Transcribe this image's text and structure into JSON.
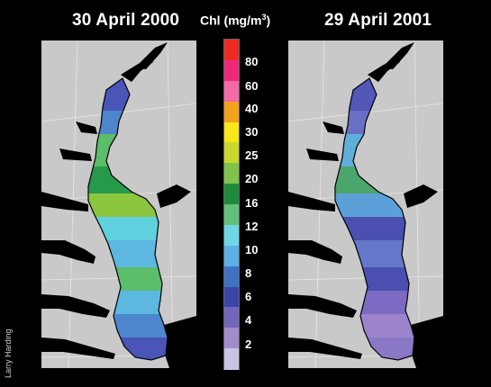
{
  "panels": [
    {
      "title": "30 April 2000",
      "zones": [
        {
          "class": "6",
          "color": "#4a55b8"
        },
        {
          "class": "8",
          "color": "#4d86cc"
        },
        {
          "class": "16",
          "color": "#5cbd6a"
        },
        {
          "class": "20",
          "color": "#27994a"
        },
        {
          "class": "25",
          "color": "#8cc63f"
        },
        {
          "class": "12",
          "color": "#5fd0de"
        },
        {
          "class": "10",
          "color": "#5cb8e0"
        },
        {
          "class": "16",
          "color": "#5cbd6a"
        },
        {
          "class": "10",
          "color": "#5cb8e0"
        },
        {
          "class": "8",
          "color": "#4d86cc"
        },
        {
          "class": "6",
          "color": "#4a55b8"
        }
      ]
    },
    {
      "title": "29 April 2001",
      "zones": [
        {
          "class": "6",
          "color": "#5257b8"
        },
        {
          "class": "8",
          "color": "#6a6fc6"
        },
        {
          "class": "12",
          "color": "#5fb0d8"
        },
        {
          "class": "16",
          "color": "#4aa66a"
        },
        {
          "class": "10",
          "color": "#5ca0d8"
        },
        {
          "class": "6",
          "color": "#4a4fb0"
        },
        {
          "class": "8",
          "color": "#6477c8"
        },
        {
          "class": "6",
          "color": "#4a4fb0"
        },
        {
          "class": "4",
          "color": "#7d6ac2"
        },
        {
          "class": "2",
          "color": "#9b84cc"
        },
        {
          "class": "4",
          "color": "#8a78c6"
        }
      ]
    }
  ],
  "legend": {
    "title_prefix": "Chl (mg/m",
    "title_exp": "3",
    "title_suffix": ")",
    "segments": [
      {
        "color": "#ee2a24"
      },
      {
        "color": "#f0287a"
      },
      {
        "color": "#f26aa8"
      },
      {
        "color": "#f4a21c"
      },
      {
        "color": "#f7e81a"
      },
      {
        "color": "#c9d82c"
      },
      {
        "color": "#7fc34a"
      },
      {
        "color": "#1e8a3c"
      },
      {
        "color": "#62c07a"
      },
      {
        "color": "#6fd6e6"
      },
      {
        "color": "#5cb0e6"
      },
      {
        "color": "#3f72c4"
      },
      {
        "color": "#3a45a8"
      },
      {
        "color": "#7266bc"
      },
      {
        "color": "#a18ccc"
      },
      {
        "color": "#cbc3e6"
      }
    ],
    "ticks": [
      "80",
      "60",
      "40",
      "30",
      "25",
      "20",
      "16",
      "12",
      "10",
      "8",
      "6",
      "4",
      "2"
    ]
  },
  "credit": "Larry Harding"
}
